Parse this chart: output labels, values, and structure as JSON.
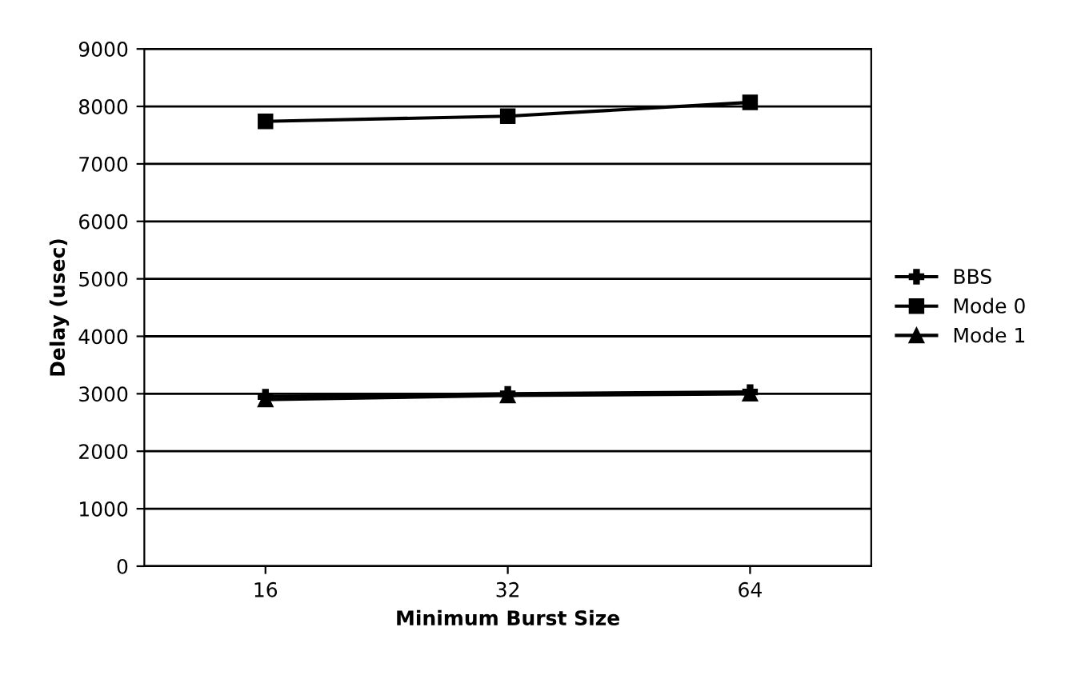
{
  "chart_data": {
    "type": "line",
    "xlabel": "Minimum Burst Size",
    "ylabel": "Delay (usec)",
    "categories": [
      "16",
      "32",
      "64"
    ],
    "series": [
      {
        "name": "BBS",
        "color": "#000000",
        "marker": "cross",
        "values": [
          2950,
          3000,
          3030
        ]
      },
      {
        "name": "Mode 0",
        "color": "#000000",
        "marker": "square",
        "values": [
          7740,
          7830,
          8070
        ]
      },
      {
        "name": "Mode 1",
        "color": "#000000",
        "marker": "triangle",
        "values": [
          2900,
          2970,
          3000
        ]
      }
    ],
    "ylim": [
      0,
      9000
    ],
    "yticks": [
      0,
      1000,
      2000,
      3000,
      4000,
      5000,
      6000,
      7000,
      8000,
      9000
    ],
    "grid": "y",
    "legend": "right"
  }
}
